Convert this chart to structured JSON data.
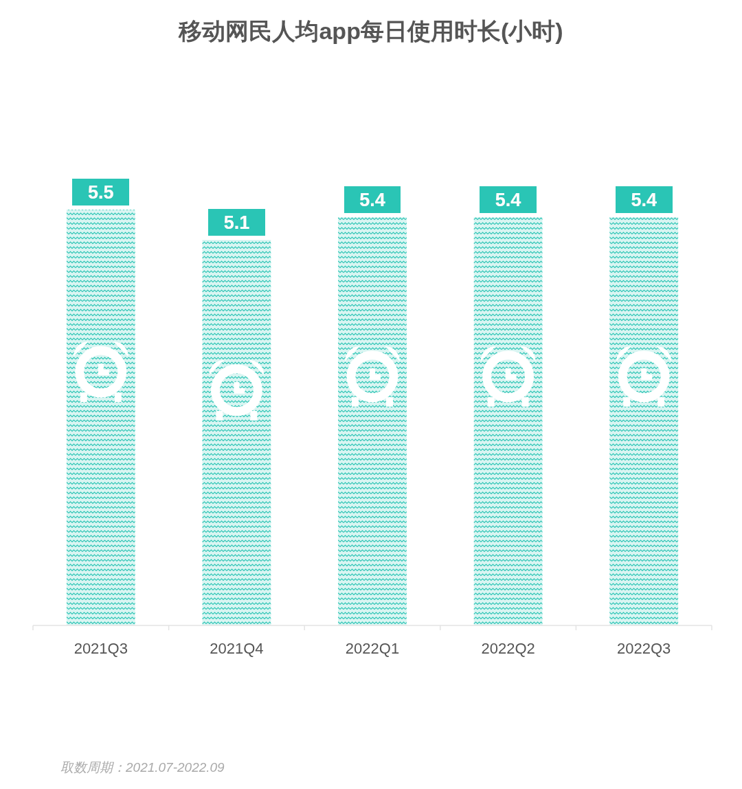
{
  "chart_data": {
    "type": "bar",
    "title": "移动网民人均app每日使用时长(小时)",
    "categories": [
      "2021Q3",
      "2021Q4",
      "2022Q1",
      "2022Q2",
      "2022Q3"
    ],
    "values": [
      5.5,
      5.1,
      5.4,
      5.4,
      5.4
    ],
    "color": "#2cc5b5",
    "data_labels": true,
    "annotations": [
      "取数周期：2021.07-2022.09"
    ]
  }
}
